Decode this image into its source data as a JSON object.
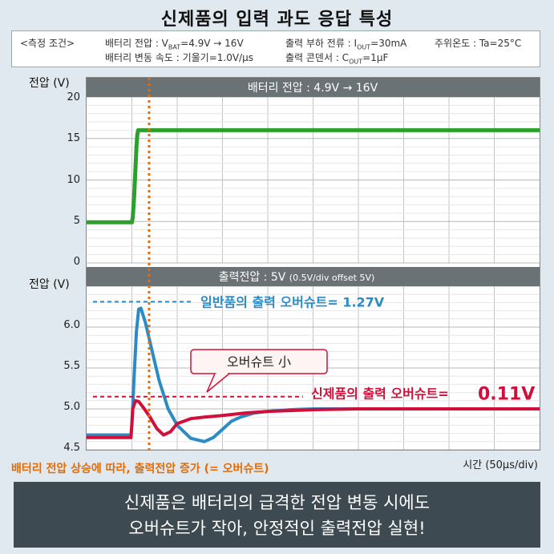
{
  "title": "신제품의 입력 과도 응답 특성",
  "conditions": {
    "heading": "<측정 조건>",
    "line1a": "배터리 전압 : V",
    "line1a_sub": "BAT",
    "line1a_rest": "=4.9V → 16V",
    "line1b": "출력 부하 전류 : I",
    "line1b_sub": "OUT",
    "line1b_rest": "=30mA",
    "line1c": "주위온도 : Ta=25°C",
    "line2a": "배터리 변동 속도 : 기울기=1.0V/μs",
    "line2b": "출력 콘덴서 : C",
    "line2b_sub": "OUT",
    "line2b_rest": "=1μF"
  },
  "chart_data": [
    {
      "type": "line",
      "title": "배터리 전압 : 4.9V → 16V",
      "ylabel": "전압 (V)",
      "ylim": [
        0,
        20
      ],
      "yticks": [
        "0",
        "5",
        "10",
        "15",
        "20"
      ],
      "grid": true,
      "series": [
        {
          "color": "#2ca02c",
          "x": [
            0,
            0.78,
            1.0,
            1.02,
            1.05,
            1.08,
            1.1,
            1.12,
            1.14,
            10
          ],
          "y": [
            4.9,
            4.9,
            4.9,
            5.5,
            8.0,
            11.5,
            14.0,
            15.5,
            16.0,
            16.0
          ]
        }
      ]
    },
    {
      "type": "line",
      "title": "출력전압 : 5V",
      "title_note": "(0.5V/div offset 5V)",
      "ylabel": "전압 (V)",
      "ylim": [
        4.5,
        6.5
      ],
      "yticks": [
        "4.5",
        "5.0",
        "5.5",
        "6.0"
      ],
      "xlabel": "시간 (50μs/div)",
      "grid": true,
      "series": [
        {
          "name": "일반품",
          "color": "#2b8bc6",
          "x": [
            0,
            0.98,
            1.0,
            1.05,
            1.1,
            1.15,
            1.2,
            1.3,
            1.45,
            1.6,
            1.8,
            2.0,
            2.3,
            2.6,
            2.8,
            3.0,
            3.2,
            3.4,
            3.7,
            4.0,
            4.5,
            5.0,
            6.0,
            7.0,
            8.0,
            10
          ],
          "y": [
            4.68,
            4.68,
            4.8,
            5.4,
            5.95,
            6.22,
            6.23,
            6.05,
            5.7,
            5.35,
            5.0,
            4.8,
            4.64,
            4.6,
            4.65,
            4.75,
            4.85,
            4.9,
            4.95,
            4.97,
            4.99,
            5.0,
            5.0,
            5.0,
            5.0,
            5.0
          ]
        },
        {
          "name": "신제품",
          "color": "#d0103a",
          "x": [
            0,
            0.98,
            1.02,
            1.08,
            1.15,
            1.25,
            1.4,
            1.55,
            1.7,
            1.85,
            2.0,
            2.3,
            2.6,
            3.0,
            3.5,
            4.0,
            5.0,
            6.0,
            7.0,
            8.0,
            10
          ],
          "y": [
            4.65,
            4.65,
            5.0,
            5.1,
            5.09,
            5.02,
            4.9,
            4.76,
            4.68,
            4.72,
            4.82,
            4.88,
            4.9,
            4.92,
            4.95,
            4.97,
            4.99,
            5.0,
            5.0,
            5.0,
            5.0
          ]
        }
      ]
    }
  ],
  "annotations": {
    "conventional": "일반품의 출력 오버슈트= 1.27V",
    "new_label": "신제품의 출력 오버슈트=",
    "new_value": "0.11V",
    "callout": "오버슈트 小",
    "footer_note": "배터리 전압 상승에 따라, 출력전압 증가 (= 오버슈트)"
  },
  "bottom": {
    "line1": "신제품은 배터리의 급격한 전압 변동 시에도",
    "line2": "오버슈트가 작아, 안정적인 출력전압 실현!"
  },
  "colors": {
    "orange": "#e36c0a",
    "blue": "#2b8bc6",
    "red": "#d0103a",
    "green": "#2ca02c",
    "header": "#6b7276"
  }
}
